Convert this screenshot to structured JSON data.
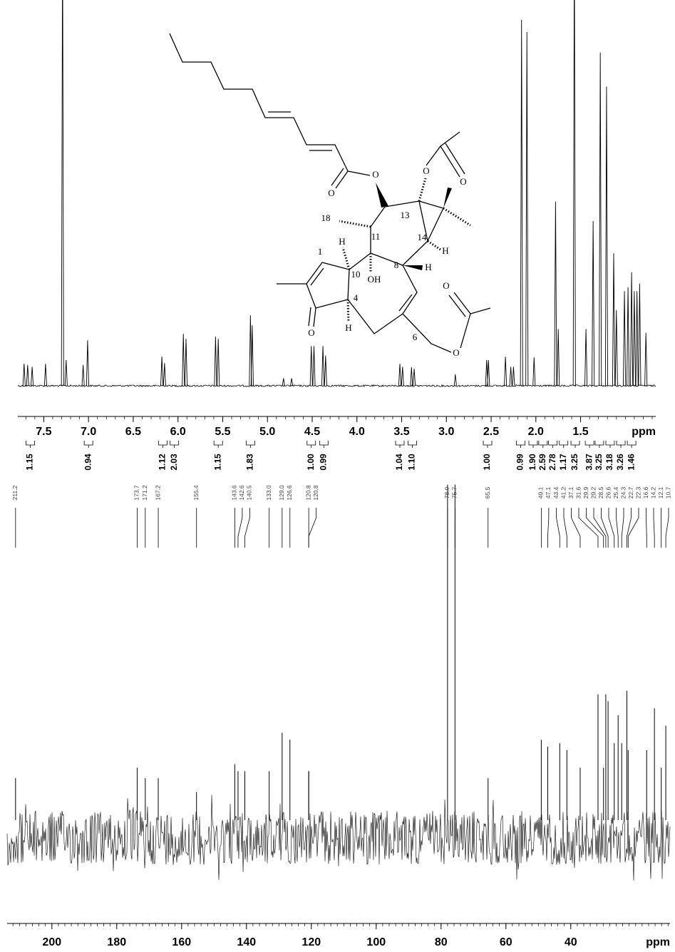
{
  "chart_data": [
    {
      "type": "spectrum",
      "x": [
        7.72,
        7.68,
        7.63,
        7.48,
        7.29,
        7.25,
        7.06,
        7.01,
        6.18,
        6.15,
        5.94,
        5.91,
        5.58,
        5.55,
        5.19,
        5.17,
        4.82,
        4.73,
        4.51,
        4.48,
        4.38,
        4.35,
        3.52,
        3.49,
        3.39,
        3.36,
        2.9,
        2.55,
        2.53,
        2.34,
        2.28,
        2.25,
        2.16,
        2.1,
        2.02,
        1.78,
        1.75,
        1.57,
        1.44,
        1.36,
        1.28,
        1.21,
        1.13,
        1.1,
        1.01,
        0.97,
        0.93,
        0.9,
        0.87,
        0.84,
        0.77
      ],
      "values": [
        5.8,
        5.5,
        5,
        5.8,
        120,
        6.8,
        5.5,
        12,
        7.7,
        6,
        13.7,
        12.4,
        13,
        12.4,
        18.6,
        16,
        2,
        2,
        10.5,
        10.5,
        10.5,
        8,
        5.8,
        5,
        4.9,
        4.5,
        3,
        6.8,
        6.8,
        7.7,
        5,
        5,
        96.6,
        93.4,
        7.5,
        48.6,
        15,
        120,
        15,
        43.5,
        88,
        79,
        35,
        20,
        25,
        26,
        30,
        25,
        25,
        27,
        14
      ],
      "xlim": [
        7.79,
        0.66
      ],
      "ylim": [
        0,
        100
      ],
      "xticks": [
        7.5,
        {
          "value": 7,
          "label": "7.0"
        },
        6.5,
        {
          "value": 6,
          "label": "6.0"
        },
        5.5,
        {
          "value": 5,
          "label": "5.0"
        },
        4.5,
        {
          "value": 4,
          "label": "4.0"
        },
        3.5,
        {
          "value": 3,
          "label": "3.0"
        },
        2.5,
        {
          "value": 2,
          "label": "2.0"
        },
        1.5
      ],
      "x_label": "ppm",
      "integral_x": [
        7.65,
        7.0,
        6.17,
        6.04,
        5.55,
        5.19,
        4.51,
        4.37,
        3.52,
        3.38,
        2.54,
        2.17,
        2.03,
        1.92,
        1.81,
        1.69,
        1.56,
        1.4,
        1.29,
        1.17,
        1.05,
        0.93
      ],
      "integral_labels": [
        "1.15",
        "0.94",
        "1.12",
        "2.03",
        "1.15",
        "1.83",
        "1.00",
        "0.99",
        "1.04",
        "1.10",
        "1.00",
        "0.99",
        "1.90",
        "2.59",
        "2.78",
        "1.17",
        "3.25",
        "3.87",
        "3.25",
        "3.18",
        "3.26",
        "1.46"
      ]
    },
    {
      "type": "spectrum",
      "x": [
        211.2,
        173.7,
        171.2,
        167.2,
        155.4,
        143.6,
        142.6,
        140.5,
        133.0,
        129.0,
        126.6,
        120.8,
        120.8,
        78.0,
        75.7,
        65.5,
        49.1,
        47.1,
        43.4,
        41.2,
        37.1,
        31.6,
        29.9,
        29.2,
        28.5,
        26.6,
        25.4,
        24.3,
        22.7,
        22.3,
        16.6,
        14.2,
        12.1,
        10.7
      ],
      "x_labels": [
        "211.2",
        "173.7",
        "171.2",
        "167.2",
        "155.4",
        "143.6",
        "142.6",
        "140.5",
        "133.0",
        "129.0",
        "126.6",
        "120.8",
        "120.8",
        "78.0",
        "75.7",
        "65.5",
        "49.1",
        "47.1",
        "43.4",
        "41.2",
        "37.1",
        "31.6",
        "29.9",
        "29.2",
        "28.5",
        "26.6",
        "25.4",
        "24.3",
        "22.7",
        "22.3",
        "16.6",
        "14.2",
        "12.1",
        "10.7"
      ],
      "values": [
        12,
        15,
        12,
        12,
        8,
        16,
        14,
        14,
        14,
        25,
        23,
        14,
        14,
        96,
        96,
        12,
        23,
        21,
        22,
        20,
        15,
        36,
        15,
        36,
        34,
        22,
        30,
        22,
        37,
        20,
        20,
        32,
        15,
        27
      ],
      "xlim": [
        213.8,
        9.4
      ],
      "ylim": [
        0,
        100
      ],
      "xticks": [
        200,
        180,
        160,
        140,
        120,
        100,
        80,
        60,
        40
      ],
      "x_label": "ppm"
    }
  ],
  "structure": {
    "labels": [
      "O",
      "O",
      "O",
      "O",
      "18",
      "11",
      "13",
      "14",
      "H",
      "H",
      "1",
      "10",
      "8",
      "H",
      "OH",
      "O",
      "4",
      "O",
      "H",
      "6",
      "O"
    ]
  }
}
